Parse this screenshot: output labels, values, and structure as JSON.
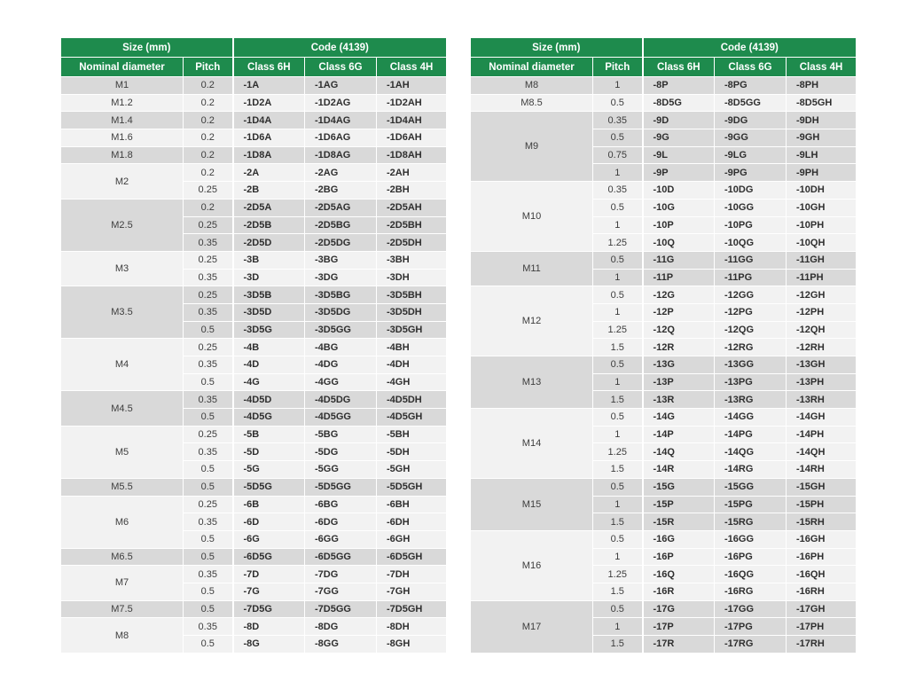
{
  "colors": {
    "header_green": "#1e8b4d",
    "row_shaded": "#d9d9d9",
    "row_plain": "#f2f2f2",
    "grid": "#ffffff"
  },
  "header": {
    "size_group": "Size (mm)",
    "code_group": "Code (4139)",
    "columns": [
      "Nominal diameter",
      "Pitch",
      "Class 6H",
      "Class 6G",
      "Class 4H"
    ]
  },
  "tables": [
    {
      "name": "left",
      "groups": [
        {
          "diameter": "M1",
          "shaded": true,
          "rows": [
            [
              "0.2",
              "-1A",
              "-1AG",
              "-1AH"
            ]
          ]
        },
        {
          "diameter": "M1.2",
          "shaded": false,
          "rows": [
            [
              "0.2",
              "-1D2A",
              "-1D2AG",
              "-1D2AH"
            ]
          ]
        },
        {
          "diameter": "M1.4",
          "shaded": true,
          "rows": [
            [
              "0.2",
              "-1D4A",
              "-1D4AG",
              "-1D4AH"
            ]
          ]
        },
        {
          "diameter": "M1.6",
          "shaded": false,
          "rows": [
            [
              "0.2",
              "-1D6A",
              "-1D6AG",
              "-1D6AH"
            ]
          ]
        },
        {
          "diameter": "M1.8",
          "shaded": true,
          "rows": [
            [
              "0.2",
              "-1D8A",
              "-1D8AG",
              "-1D8AH"
            ]
          ]
        },
        {
          "diameter": "M2",
          "shaded": false,
          "rows": [
            [
              "0.2",
              "-2A",
              "-2AG",
              "-2AH"
            ],
            [
              "0.25",
              "-2B",
              "-2BG",
              "-2BH"
            ]
          ]
        },
        {
          "diameter": "M2.5",
          "shaded": true,
          "rows": [
            [
              "0.2",
              "-2D5A",
              "-2D5AG",
              "-2D5AH"
            ],
            [
              "0.25",
              "-2D5B",
              "-2D5BG",
              "-2D5BH"
            ],
            [
              "0.35",
              "-2D5D",
              "-2D5DG",
              "-2D5DH"
            ]
          ]
        },
        {
          "diameter": "M3",
          "shaded": false,
          "rows": [
            [
              "0.25",
              "-3B",
              "-3BG",
              "-3BH"
            ],
            [
              "0.35",
              "-3D",
              "-3DG",
              "-3DH"
            ]
          ]
        },
        {
          "diameter": "M3.5",
          "shaded": true,
          "rows": [
            [
              "0.25",
              "-3D5B",
              "-3D5BG",
              "-3D5BH"
            ],
            [
              "0.35",
              "-3D5D",
              "-3D5DG",
              "-3D5DH"
            ],
            [
              "0.5",
              "-3D5G",
              "-3D5GG",
              "-3D5GH"
            ]
          ]
        },
        {
          "diameter": "M4",
          "shaded": false,
          "rows": [
            [
              "0.25",
              "-4B",
              "-4BG",
              "-4BH"
            ],
            [
              "0.35",
              "-4D",
              "-4DG",
              "-4DH"
            ],
            [
              "0.5",
              "-4G",
              "-4GG",
              "-4GH"
            ]
          ]
        },
        {
          "diameter": "M4.5",
          "shaded": true,
          "rows": [
            [
              "0.35",
              "-4D5D",
              "-4D5DG",
              "-4D5DH"
            ],
            [
              "0.5",
              "-4D5G",
              "-4D5GG",
              "-4D5GH"
            ]
          ]
        },
        {
          "diameter": "M5",
          "shaded": false,
          "rows": [
            [
              "0.25",
              "-5B",
              "-5BG",
              "-5BH"
            ],
            [
              "0.35",
              "-5D",
              "-5DG",
              "-5DH"
            ],
            [
              "0.5",
              "-5G",
              "-5GG",
              "-5GH"
            ]
          ]
        },
        {
          "diameter": "M5.5",
          "shaded": true,
          "rows": [
            [
              "0.5",
              "-5D5G",
              "-5D5GG",
              "-5D5GH"
            ]
          ]
        },
        {
          "diameter": "M6",
          "shaded": false,
          "rows": [
            [
              "0.25",
              "-6B",
              "-6BG",
              "-6BH"
            ],
            [
              "0.35",
              "-6D",
              "-6DG",
              "-6DH"
            ],
            [
              "0.5",
              "-6G",
              "-6GG",
              "-6GH"
            ]
          ]
        },
        {
          "diameter": "M6.5",
          "shaded": true,
          "rows": [
            [
              "0.5",
              "-6D5G",
              "-6D5GG",
              "-6D5GH"
            ]
          ]
        },
        {
          "diameter": "M7",
          "shaded": false,
          "rows": [
            [
              "0.35",
              "-7D",
              "-7DG",
              "-7DH"
            ],
            [
              "0.5",
              "-7G",
              "-7GG",
              "-7GH"
            ]
          ]
        },
        {
          "diameter": "M7.5",
          "shaded": true,
          "rows": [
            [
              "0.5",
              "-7D5G",
              "-7D5GG",
              "-7D5GH"
            ]
          ]
        },
        {
          "diameter": "M8",
          "shaded": false,
          "rows": [
            [
              "0.35",
              "-8D",
              "-8DG",
              "-8DH"
            ],
            [
              "0.5",
              "-8G",
              "-8GG",
              "-8GH"
            ]
          ]
        }
      ]
    },
    {
      "name": "right",
      "groups": [
        {
          "diameter": "M8",
          "shaded": true,
          "rows": [
            [
              "1",
              "-8P",
              "-8PG",
              "-8PH"
            ]
          ]
        },
        {
          "diameter": "M8.5",
          "shaded": false,
          "rows": [
            [
              "0.5",
              "-8D5G",
              "-8D5GG",
              "-8D5GH"
            ]
          ]
        },
        {
          "diameter": "M9",
          "shaded": true,
          "rows": [
            [
              "0.35",
              "-9D",
              "-9DG",
              "-9DH"
            ],
            [
              "0.5",
              "-9G",
              "-9GG",
              "-9GH"
            ],
            [
              "0.75",
              "-9L",
              "-9LG",
              "-9LH"
            ],
            [
              "1",
              "-9P",
              "-9PG",
              "-9PH"
            ]
          ]
        },
        {
          "diameter": "M10",
          "shaded": false,
          "rows": [
            [
              "0.35",
              "-10D",
              "-10DG",
              "-10DH"
            ],
            [
              "0.5",
              "-10G",
              "-10GG",
              "-10GH"
            ],
            [
              "1",
              "-10P",
              "-10PG",
              "-10PH"
            ],
            [
              "1.25",
              "-10Q",
              "-10QG",
              "-10QH"
            ]
          ]
        },
        {
          "diameter": "M11",
          "shaded": true,
          "rows": [
            [
              "0.5",
              "-11G",
              "-11GG",
              "-11GH"
            ],
            [
              "1",
              "-11P",
              "-11PG",
              "-11PH"
            ]
          ]
        },
        {
          "diameter": "M12",
          "shaded": false,
          "rows": [
            [
              "0.5",
              "-12G",
              "-12GG",
              "-12GH"
            ],
            [
              "1",
              "-12P",
              "-12PG",
              "-12PH"
            ],
            [
              "1.25",
              "-12Q",
              "-12QG",
              "-12QH"
            ],
            [
              "1.5",
              "-12R",
              "-12RG",
              "-12RH"
            ]
          ]
        },
        {
          "diameter": "M13",
          "shaded": true,
          "rows": [
            [
              "0.5",
              "-13G",
              "-13GG",
              "-13GH"
            ],
            [
              "1",
              "-13P",
              "-13PG",
              "-13PH"
            ],
            [
              "1.5",
              "-13R",
              "-13RG",
              "-13RH"
            ]
          ]
        },
        {
          "diameter": "M14",
          "shaded": false,
          "rows": [
            [
              "0.5",
              "-14G",
              "-14GG",
              "-14GH"
            ],
            [
              "1",
              "-14P",
              "-14PG",
              "-14PH"
            ],
            [
              "1.25",
              "-14Q",
              "-14QG",
              "-14QH"
            ],
            [
              "1.5",
              "-14R",
              "-14RG",
              "-14RH"
            ]
          ]
        },
        {
          "diameter": "M15",
          "shaded": true,
          "rows": [
            [
              "0.5",
              "-15G",
              "-15GG",
              "-15GH"
            ],
            [
              "1",
              "-15P",
              "-15PG",
              "-15PH"
            ],
            [
              "1.5",
              "-15R",
              "-15RG",
              "-15RH"
            ]
          ]
        },
        {
          "diameter": "M16",
          "shaded": false,
          "rows": [
            [
              "0.5",
              "-16G",
              "-16GG",
              "-16GH"
            ],
            [
              "1",
              "-16P",
              "-16PG",
              "-16PH"
            ],
            [
              "1.25",
              "-16Q",
              "-16QG",
              "-16QH"
            ],
            [
              "1.5",
              "-16R",
              "-16RG",
              "-16RH"
            ]
          ]
        },
        {
          "diameter": "M17",
          "shaded": true,
          "rows": [
            [
              "0.5",
              "-17G",
              "-17GG",
              "-17GH"
            ],
            [
              "1",
              "-17P",
              "-17PG",
              "-17PH"
            ],
            [
              "1.5",
              "-17R",
              "-17RG",
              "-17RH"
            ]
          ]
        }
      ]
    }
  ]
}
